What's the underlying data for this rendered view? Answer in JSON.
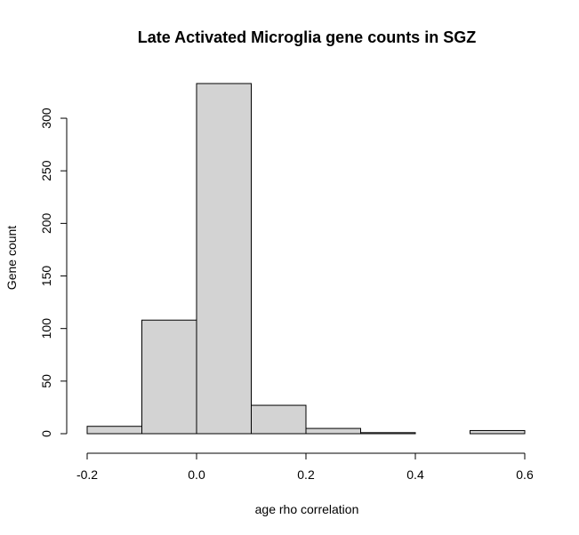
{
  "chart_data": {
    "type": "bar",
    "title": "Late Activated Microglia gene counts in SGZ",
    "xlabel": "age rho correlation",
    "ylabel": "Gene count",
    "bins": [
      {
        "x0": -0.2,
        "x1": -0.1,
        "count": 7
      },
      {
        "x0": -0.1,
        "x1": 0.0,
        "count": 108
      },
      {
        "x0": 0.0,
        "x1": 0.1,
        "count": 333
      },
      {
        "x0": 0.1,
        "x1": 0.2,
        "count": 27
      },
      {
        "x0": 0.2,
        "x1": 0.3,
        "count": 5
      },
      {
        "x0": 0.3,
        "x1": 0.4,
        "count": 1
      },
      {
        "x0": 0.4,
        "x1": 0.5,
        "count": 0
      },
      {
        "x0": 0.5,
        "x1": 0.6,
        "count": 3
      }
    ],
    "xlim": [
      -0.2,
      0.6
    ],
    "ylim": [
      0,
      333
    ],
    "x_ticks": [
      "-0.2",
      "0.0",
      "0.2",
      "0.4",
      "0.6"
    ],
    "y_ticks": [
      "0",
      "50",
      "100",
      "150",
      "200",
      "250",
      "300"
    ],
    "bar_fill": "#d3d3d3",
    "bar_stroke": "#000000",
    "grid": false
  }
}
